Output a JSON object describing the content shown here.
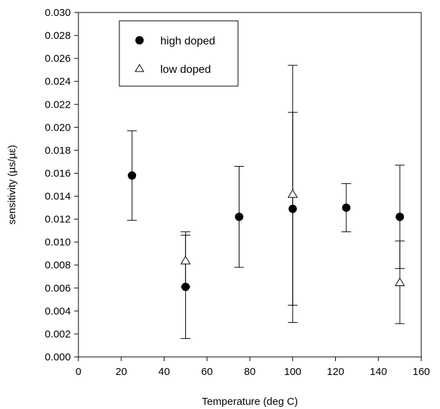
{
  "chart_data": {
    "type": "scatter",
    "xlabel": "Temperature (deg C)",
    "ylabel": "sensitivity (µs/µε)",
    "xlim": [
      0,
      160
    ],
    "ylim": [
      0,
      0.03
    ],
    "xticks": [
      "0",
      "20",
      "40",
      "60",
      "80",
      "100",
      "120",
      "140",
      "160"
    ],
    "yticks": [
      "0.000",
      "0.002",
      "0.004",
      "0.006",
      "0.008",
      "0.010",
      "0.012",
      "0.014",
      "0.016",
      "0.018",
      "0.020",
      "0.022",
      "0.024",
      "0.026",
      "0.028",
      "0.030"
    ],
    "grid": false,
    "legend_position": "top-left",
    "series": [
      {
        "name": "high doped",
        "marker": "filled-circle",
        "color": "#000000",
        "points": [
          {
            "x": 25,
            "y": 0.0158,
            "err_low": 0.0119,
            "err_high": 0.0197
          },
          {
            "x": 50,
            "y": 0.0061,
            "err_low": 0.0016,
            "err_high": 0.0106
          },
          {
            "x": 75,
            "y": 0.0122,
            "err_low": 0.0078,
            "err_high": 0.0166
          },
          {
            "x": 100,
            "y": 0.0129,
            "err_low": 0.0045,
            "err_high": 0.0213
          },
          {
            "x": 125,
            "y": 0.013,
            "err_low": 0.0109,
            "err_high": 0.0151
          },
          {
            "x": 150,
            "y": 0.0122,
            "err_low": 0.0077,
            "err_high": 0.0167
          }
        ]
      },
      {
        "name": "low doped",
        "marker": "open-triangle",
        "color": "#000000",
        "points": [
          {
            "x": 50,
            "y": 0.0084,
            "err_low": 0.0061,
            "err_high": 0.0109
          },
          {
            "x": 100,
            "y": 0.0142,
            "err_low": 0.003,
            "err_high": 0.0254
          },
          {
            "x": 150,
            "y": 0.0065,
            "err_low": 0.0029,
            "err_high": 0.0101
          }
        ]
      }
    ]
  }
}
